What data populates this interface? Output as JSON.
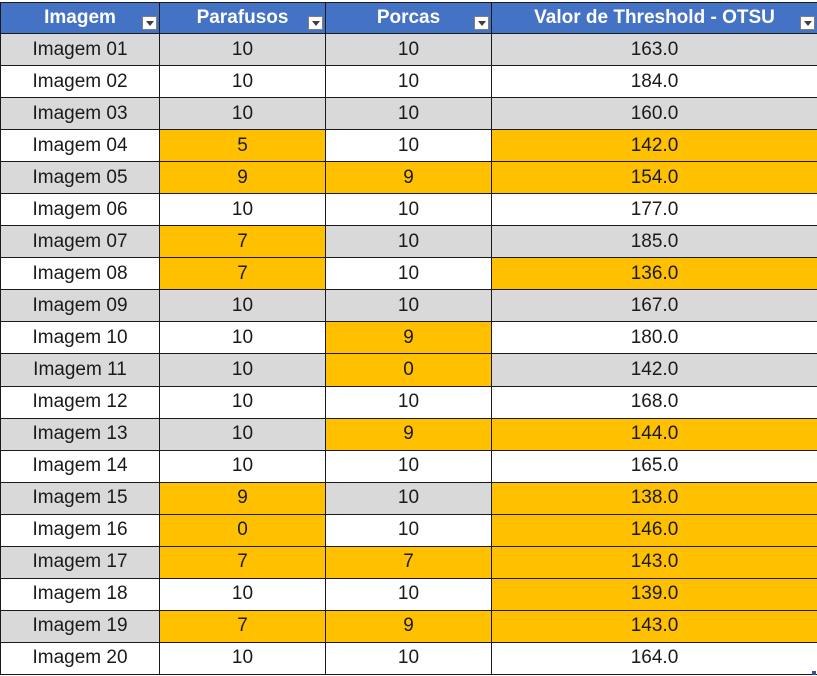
{
  "table": {
    "headers": [
      "Imagem",
      "Parafusos",
      "Porcas",
      "Valor de Threshold - OTSU"
    ],
    "rows": [
      {
        "cells": [
          "Imagem 01",
          "10",
          "10",
          "163.0"
        ],
        "highlight": [
          false,
          false,
          false,
          false
        ]
      },
      {
        "cells": [
          "Imagem 02",
          "10",
          "10",
          "184.0"
        ],
        "highlight": [
          false,
          false,
          false,
          false
        ]
      },
      {
        "cells": [
          "Imagem 03",
          "10",
          "10",
          "160.0"
        ],
        "highlight": [
          false,
          false,
          false,
          false
        ]
      },
      {
        "cells": [
          "Imagem 04",
          "5",
          "10",
          "142.0"
        ],
        "highlight": [
          false,
          true,
          false,
          true
        ]
      },
      {
        "cells": [
          "Imagem 05",
          "9",
          "9",
          "154.0"
        ],
        "highlight": [
          false,
          true,
          true,
          true
        ]
      },
      {
        "cells": [
          "Imagem 06",
          "10",
          "10",
          "177.0"
        ],
        "highlight": [
          false,
          false,
          false,
          false
        ]
      },
      {
        "cells": [
          "Imagem 07",
          "7",
          "10",
          "185.0"
        ],
        "highlight": [
          false,
          true,
          false,
          false
        ]
      },
      {
        "cells": [
          "Imagem 08",
          "7",
          "10",
          "136.0"
        ],
        "highlight": [
          false,
          true,
          false,
          true
        ]
      },
      {
        "cells": [
          "Imagem 09",
          "10",
          "10",
          "167.0"
        ],
        "highlight": [
          false,
          false,
          false,
          false
        ]
      },
      {
        "cells": [
          "Imagem 10",
          "10",
          "9",
          "180.0"
        ],
        "highlight": [
          false,
          false,
          true,
          false
        ]
      },
      {
        "cells": [
          "Imagem 11",
          "10",
          "0",
          "142.0"
        ],
        "highlight": [
          false,
          false,
          true,
          false
        ]
      },
      {
        "cells": [
          "Imagem 12",
          "10",
          "10",
          "168.0"
        ],
        "highlight": [
          false,
          false,
          false,
          false
        ]
      },
      {
        "cells": [
          "Imagem 13",
          "10",
          "9",
          "144.0"
        ],
        "highlight": [
          false,
          false,
          true,
          true
        ]
      },
      {
        "cells": [
          "Imagem 14",
          "10",
          "10",
          "165.0"
        ],
        "highlight": [
          false,
          false,
          false,
          false
        ]
      },
      {
        "cells": [
          "Imagem 15",
          "9",
          "10",
          "138.0"
        ],
        "highlight": [
          false,
          true,
          false,
          true
        ]
      },
      {
        "cells": [
          "Imagem 16",
          "0",
          "10",
          "146.0"
        ],
        "highlight": [
          false,
          true,
          false,
          true
        ]
      },
      {
        "cells": [
          "Imagem 17",
          "7",
          "7",
          "143.0"
        ],
        "highlight": [
          false,
          true,
          true,
          true
        ]
      },
      {
        "cells": [
          "Imagem 18",
          "10",
          "10",
          "139.0"
        ],
        "highlight": [
          false,
          false,
          false,
          true
        ]
      },
      {
        "cells": [
          "Imagem 19",
          "7",
          "9",
          "143.0"
        ],
        "highlight": [
          false,
          true,
          true,
          true
        ]
      },
      {
        "cells": [
          "Imagem 20",
          "10",
          "10",
          "164.0"
        ],
        "highlight": [
          false,
          false,
          false,
          false
        ]
      }
    ]
  },
  "colors": {
    "header_bg": "#4472c4",
    "header_text": "#ffffff",
    "band_bg": "#d9d9d9",
    "highlight_bg": "#ffc000"
  },
  "icons": {
    "filter": "filter-dropdown-icon",
    "resize": "table-resize-handle-icon"
  }
}
